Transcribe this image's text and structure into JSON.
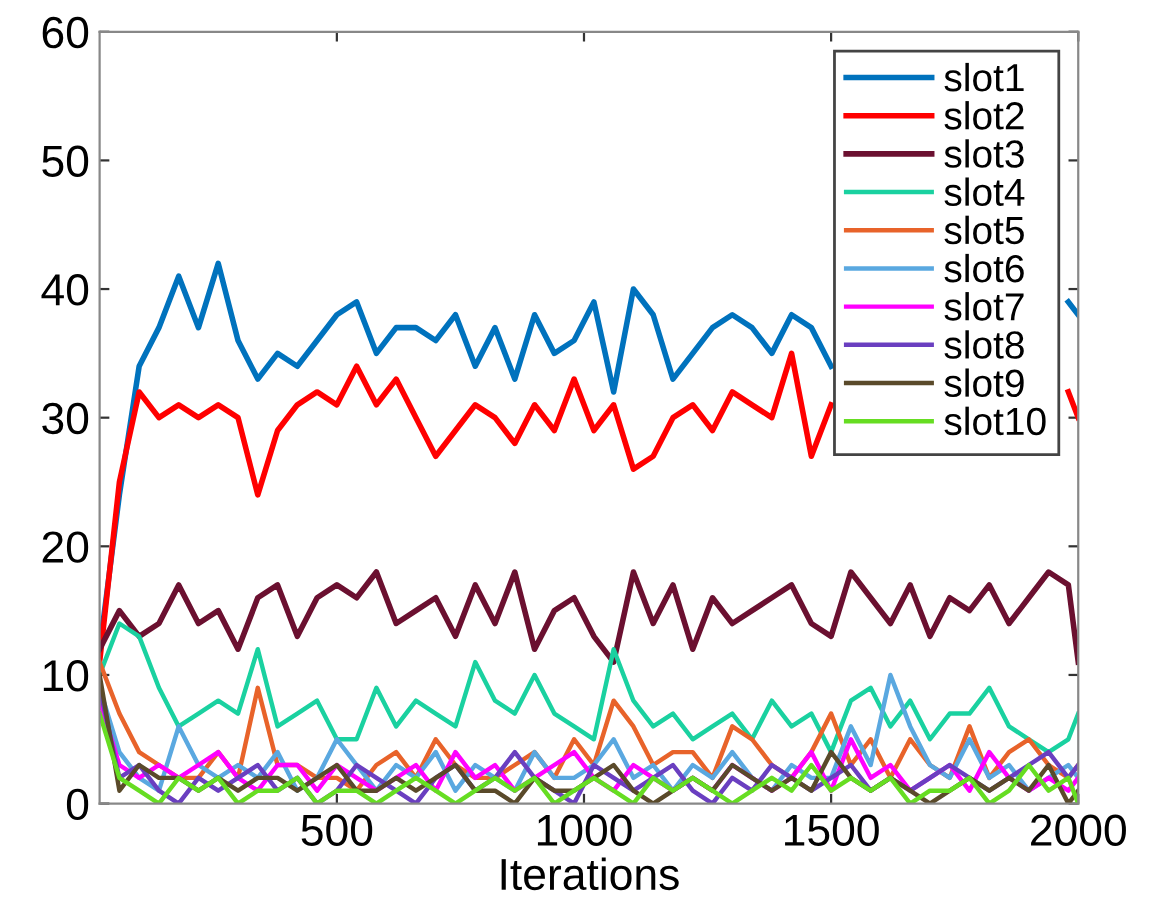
{
  "chart_data": {
    "type": "line",
    "xlabel": "Iterations",
    "xlim": [
      20,
      2000
    ],
    "ylim": [
      0,
      60
    ],
    "xticks": [
      500,
      1000,
      1500,
      2000
    ],
    "yticks": [
      0,
      10,
      20,
      30,
      40,
      50,
      60
    ],
    "grid": false,
    "legend": "top right",
    "marker": "none",
    "line_style": "solid",
    "x": [
      20,
      60,
      100,
      140,
      180,
      220,
      260,
      300,
      340,
      380,
      420,
      460,
      500,
      540,
      580,
      620,
      660,
      700,
      740,
      780,
      820,
      860,
      900,
      940,
      980,
      1020,
      1060,
      1100,
      1140,
      1180,
      1220,
      1260,
      1300,
      1340,
      1380,
      1420,
      1460,
      1500,
      1540,
      1580,
      1620,
      1660,
      1700,
      1740,
      1780,
      1820,
      1860,
      1900,
      1940,
      1980,
      2000
    ],
    "series": [
      {
        "name": "slot1",
        "color": "#0072bd",
        "values": [
          12,
          24,
          34,
          37,
          41,
          37,
          42,
          36,
          33,
          35,
          34,
          36,
          38,
          39,
          35,
          37,
          37,
          36,
          38,
          34,
          37,
          33,
          38,
          35,
          36,
          39,
          32,
          40,
          38,
          33,
          35,
          37,
          38,
          37,
          35,
          38,
          37,
          34,
          null,
          null,
          null,
          null,
          null,
          null,
          null,
          null,
          null,
          null,
          null,
          39,
          38
        ]
      },
      {
        "name": "slot2",
        "color": "#ff0000",
        "values": [
          11,
          25,
          32,
          30,
          31,
          30,
          31,
          30,
          24,
          29,
          31,
          32,
          31,
          34,
          31,
          33,
          30,
          27,
          29,
          31,
          30,
          28,
          31,
          29,
          33,
          29,
          31,
          26,
          27,
          30,
          31,
          29,
          32,
          31,
          30,
          35,
          27,
          31,
          null,
          null,
          null,
          null,
          null,
          null,
          null,
          null,
          null,
          null,
          null,
          32,
          30
        ]
      },
      {
        "name": "slot3",
        "color": "#6b1030",
        "values": [
          12,
          15,
          13,
          14,
          17,
          14,
          15,
          12,
          16,
          17,
          13,
          16,
          17,
          16,
          18,
          14,
          15,
          16,
          13,
          17,
          14,
          18,
          12,
          15,
          16,
          13,
          11,
          18,
          14,
          17,
          12,
          16,
          14,
          15,
          16,
          17,
          14,
          13,
          18,
          16,
          14,
          17,
          13,
          16,
          15,
          17,
          14,
          16,
          18,
          17,
          11
        ]
      },
      {
        "name": "slot4",
        "color": "#1ad1a0",
        "values": [
          10,
          14,
          13,
          9,
          6,
          7,
          8,
          7,
          12,
          6,
          7,
          8,
          5,
          5,
          9,
          6,
          8,
          7,
          6,
          11,
          8,
          7,
          10,
          7,
          6,
          5,
          12,
          8,
          6,
          7,
          5,
          6,
          7,
          5,
          8,
          6,
          7,
          4,
          8,
          9,
          6,
          8,
          5,
          7,
          7,
          9,
          6,
          5,
          4,
          5,
          7
        ]
      },
      {
        "name": "slot5",
        "color": "#e8632a",
        "values": [
          11,
          7,
          4,
          3,
          2,
          2,
          4,
          2,
          9,
          3,
          3,
          2,
          2,
          1,
          3,
          4,
          2,
          5,
          3,
          2,
          2,
          3,
          4,
          2,
          5,
          3,
          8,
          6,
          3,
          4,
          4,
          2,
          6,
          5,
          3,
          2,
          4,
          7,
          3,
          5,
          2,
          5,
          3,
          2,
          6,
          2,
          4,
          5,
          3,
          2,
          3
        ]
      },
      {
        "name": "slot6",
        "color": "#5aa8e0",
        "values": [
          9,
          4,
          2,
          1,
          6,
          3,
          2,
          3,
          2,
          4,
          1,
          2,
          5,
          3,
          1,
          3,
          2,
          4,
          1,
          3,
          2,
          1,
          4,
          2,
          2,
          3,
          5,
          2,
          3,
          1,
          3,
          2,
          4,
          2,
          1,
          3,
          2,
          2,
          6,
          3,
          10,
          6,
          3,
          2,
          5,
          2,
          3,
          1,
          2,
          3,
          2
        ]
      },
      {
        "name": "slot7",
        "color": "#ff00ff",
        "values": [
          8,
          3,
          2,
          3,
          2,
          3,
          4,
          2,
          1,
          3,
          3,
          1,
          3,
          2,
          1,
          2,
          3,
          1,
          4,
          2,
          3,
          1,
          2,
          3,
          4,
          2,
          1,
          3,
          2,
          1,
          2,
          1,
          3,
          2,
          1,
          2,
          4,
          1,
          5,
          2,
          3,
          1,
          2,
          3,
          1,
          4,
          2,
          1,
          2,
          1,
          2
        ]
      },
      {
        "name": "slot8",
        "color": "#6a3fc0",
        "values": [
          9,
          2,
          3,
          1,
          0,
          2,
          1,
          2,
          3,
          1,
          2,
          0,
          1,
          3,
          2,
          1,
          0,
          2,
          3,
          1,
          2,
          4,
          2,
          1,
          0,
          3,
          2,
          1,
          2,
          3,
          1,
          0,
          2,
          1,
          3,
          2,
          1,
          2,
          3,
          1,
          2,
          1,
          2,
          3,
          2,
          1,
          2,
          3,
          4,
          2,
          3
        ]
      },
      {
        "name": "slot9",
        "color": "#5a4a2a",
        "values": [
          10,
          1,
          3,
          2,
          2,
          1,
          2,
          1,
          2,
          2,
          1,
          2,
          3,
          1,
          1,
          2,
          1,
          2,
          3,
          1,
          1,
          0,
          2,
          1,
          1,
          2,
          3,
          1,
          0,
          1,
          2,
          1,
          3,
          2,
          1,
          2,
          1,
          4,
          2,
          1,
          2,
          1,
          0,
          1,
          2,
          1,
          2,
          1,
          3,
          0,
          1
        ]
      },
      {
        "name": "slot10",
        "color": "#66dd22",
        "values": [
          7,
          2,
          1,
          0,
          2,
          1,
          2,
          0,
          1,
          1,
          2,
          0,
          1,
          1,
          0,
          1,
          2,
          1,
          0,
          1,
          2,
          1,
          2,
          0,
          1,
          2,
          1,
          0,
          2,
          1,
          2,
          1,
          0,
          1,
          2,
          1,
          3,
          1,
          2,
          1,
          2,
          0,
          1,
          1,
          2,
          0,
          1,
          3,
          1,
          2,
          0
        ]
      }
    ]
  }
}
